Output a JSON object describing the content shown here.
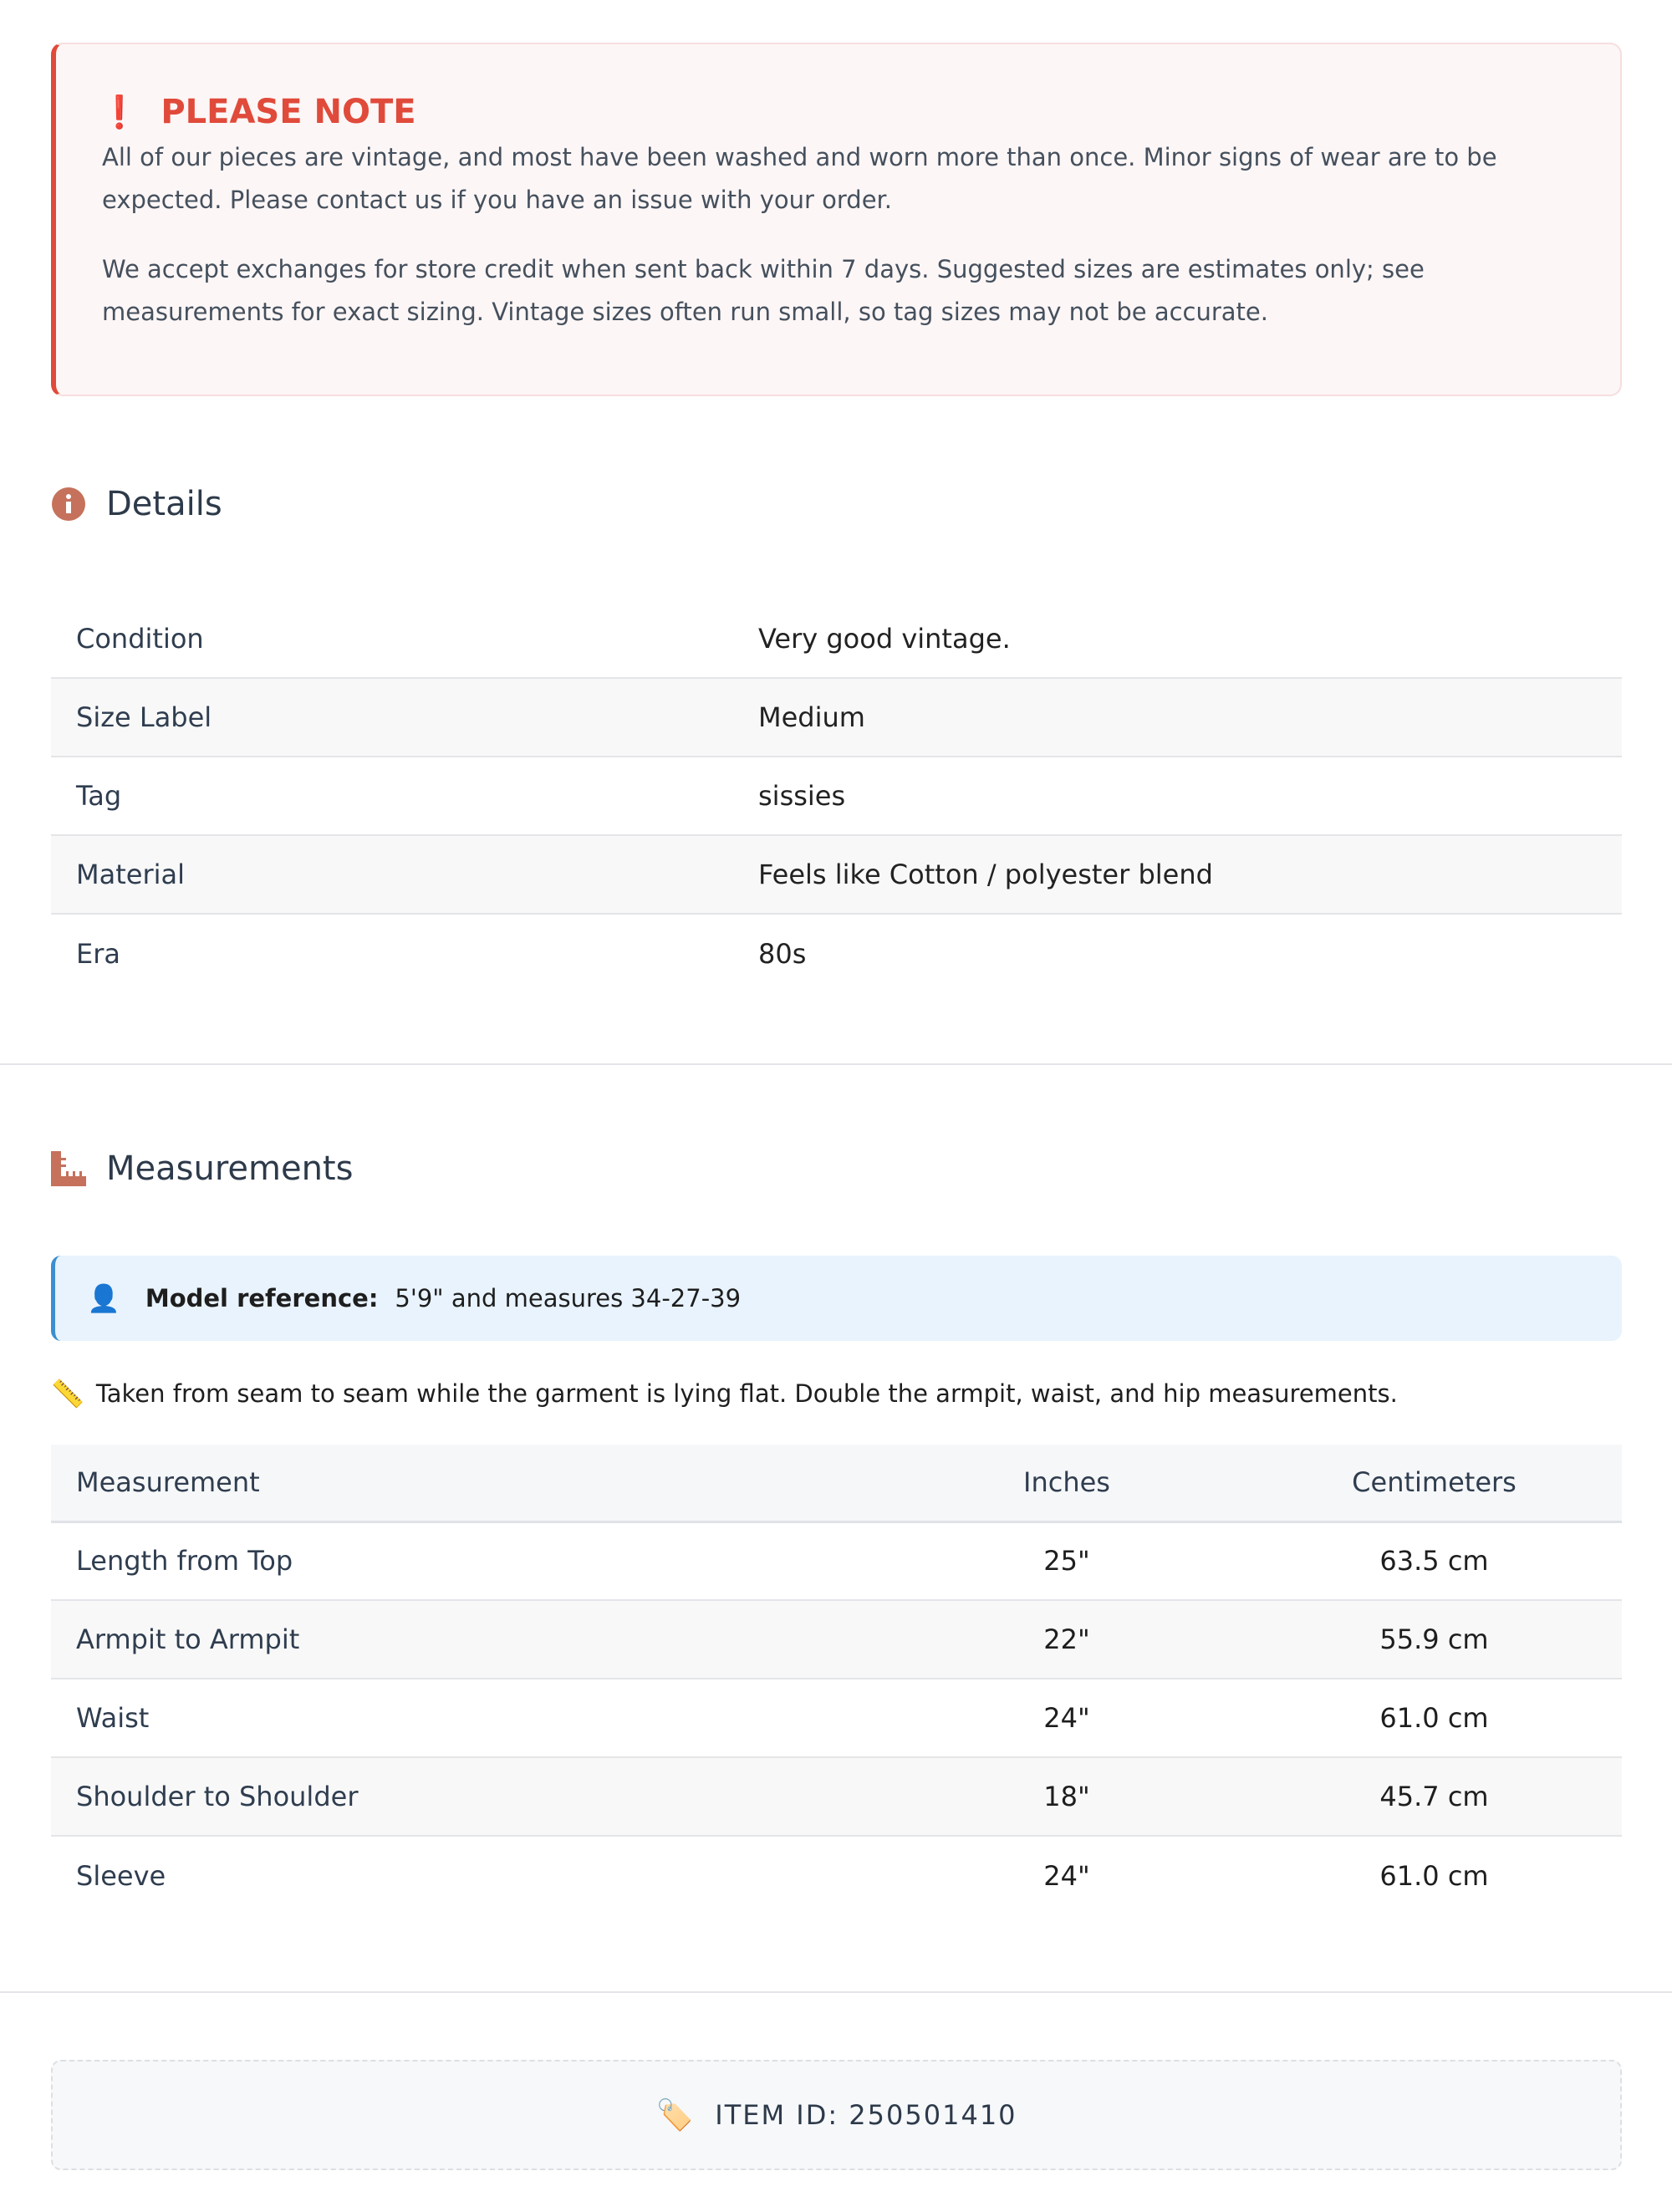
{
  "notice": {
    "title": "PLEASE NOTE",
    "icon": "exclamation-icon",
    "accent": "#e04a3a",
    "paragraphs": [
      "All of our pieces are vintage, and most have been washed and worn more than once. Minor signs of wear are to be expected. Please contact us if you have an issue with your order.",
      "We accept exchanges for store credit when sent back within 7 days. Suggested sizes are estimates only; see measurements for exact sizing. Vintage sizes often run small, so tag sizes may not be accurate."
    ]
  },
  "details": {
    "title": "Details",
    "icon": "info-icon",
    "rows": [
      {
        "label": "Condition",
        "value": "Very good vintage."
      },
      {
        "label": "Size Label",
        "value": "Medium"
      },
      {
        "label": "Tag",
        "value": "sissies"
      },
      {
        "label": "Material",
        "value": "Feels like Cotton / polyester blend"
      },
      {
        "label": "Era",
        "value": "80s"
      }
    ]
  },
  "measurements": {
    "title": "Measurements",
    "icon": "ruler-icon",
    "model": {
      "label": "Model reference:",
      "value": "5'9\" and measures 34-27-39"
    },
    "note": "Taken from seam to seam while the garment is lying flat. Double the armpit, waist, and hip measurements.",
    "headers": [
      "Measurement",
      "Inches",
      "Centimeters"
    ],
    "rows": [
      [
        "Length from Top",
        "25\"",
        "63.5 cm"
      ],
      [
        "Armpit to Armpit",
        "22\"",
        "55.9 cm"
      ],
      [
        "Waist",
        "24\"",
        "61.0 cm"
      ],
      [
        "Shoulder to Shoulder",
        "18\"",
        "45.7 cm"
      ],
      [
        "Sleeve",
        "24\"",
        "61.0 cm"
      ]
    ]
  },
  "item": {
    "label": "ITEM ID: 250501410"
  }
}
